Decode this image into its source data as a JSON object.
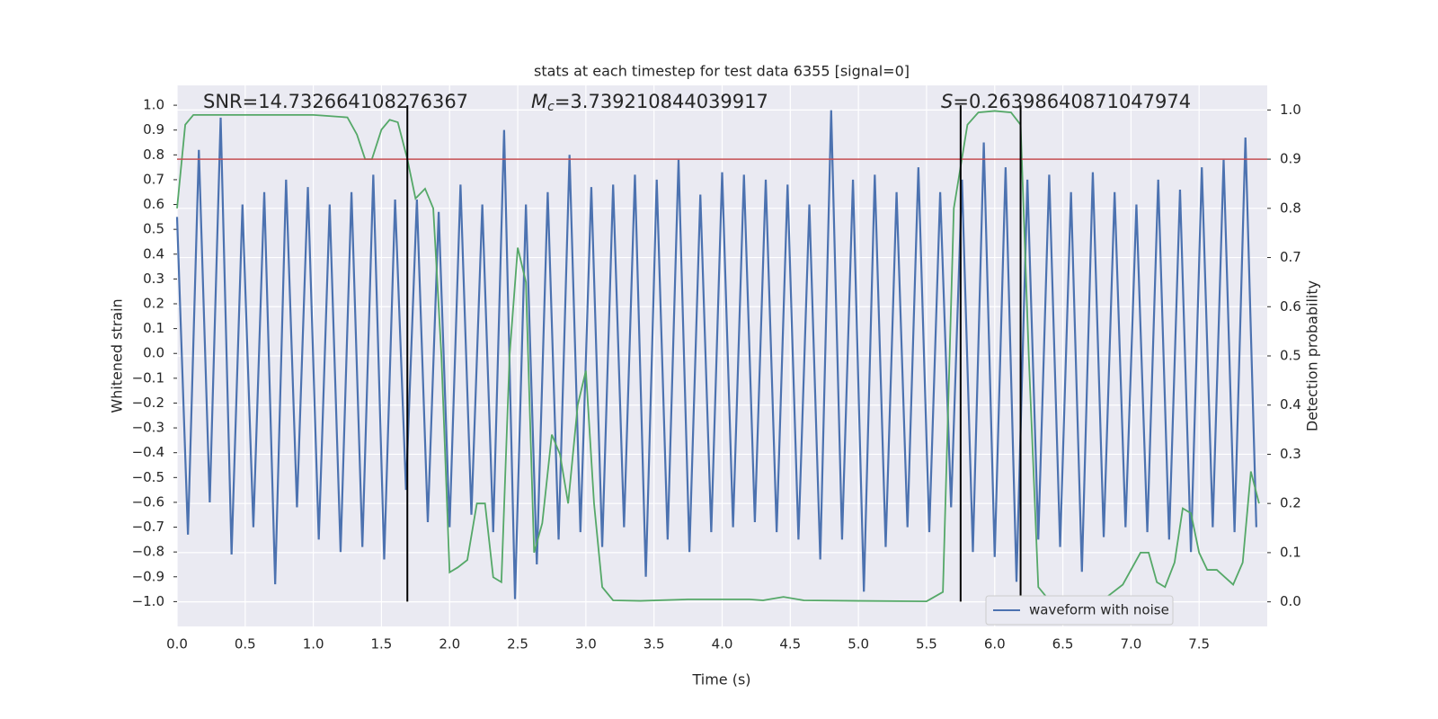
{
  "chart_data": {
    "type": "line",
    "title": "stats at each timestep for test data 6355 [signal=0]",
    "x_label": "Time (s)",
    "y_label": "Whitened strain",
    "y2_label": "Detection probability",
    "annotations": [
      {
        "text": "SNR=14.732664108276367"
      },
      {
        "symbol": "M",
        "subscript": "c",
        "text": "=3.739210844039917"
      },
      {
        "symbol": "S",
        "text": "=0.26398640871047974"
      }
    ],
    "xlim": [
      0,
      8
    ],
    "ylim": [
      -1.1,
      1.08
    ],
    "y2lim": [
      -0.05,
      1.05
    ],
    "xticks": [
      {
        "value": 0,
        "label": "0.0"
      },
      0.5,
      {
        "value": 1,
        "label": "1.0"
      },
      1.5,
      {
        "value": 2,
        "label": "2.0"
      },
      2.5,
      {
        "value": 3,
        "label": "3.0"
      },
      3.5,
      {
        "value": 4,
        "label": "4.0"
      },
      4.5,
      {
        "value": 5,
        "label": "5.0"
      },
      5.5,
      {
        "value": 6,
        "label": "6.0"
      },
      6.5,
      {
        "value": 7,
        "label": "7.0"
      },
      7.5
    ],
    "yticks": [
      {
        "value": -1,
        "label": "−1.0"
      },
      {
        "value": -0.9,
        "label": "−0.9"
      },
      {
        "value": -0.8,
        "label": "−0.8"
      },
      {
        "value": -0.7,
        "label": "−0.7"
      },
      {
        "value": -0.6,
        "label": "−0.6"
      },
      {
        "value": -0.5,
        "label": "−0.5"
      },
      {
        "value": -0.4,
        "label": "−0.4"
      },
      {
        "value": -0.3,
        "label": "−0.3"
      },
      {
        "value": -0.2,
        "label": "−0.2"
      },
      {
        "value": -0.1,
        "label": "−0.1"
      },
      {
        "value": 0,
        "label": "0.0"
      },
      0.1,
      0.2,
      0.3,
      0.4,
      0.5,
      0.6,
      0.7,
      0.8,
      0.9,
      {
        "value": 1,
        "label": "1.0"
      }
    ],
    "y2ticks": [
      {
        "value": 0,
        "label": "0.0"
      },
      0.1,
      0.2,
      0.3,
      0.4,
      0.5,
      0.6,
      0.7,
      0.8,
      0.9,
      {
        "value": 1,
        "label": "1.0"
      }
    ],
    "grid": true,
    "legend": "lower right",
    "series": [
      {
        "name": "waveform with noise",
        "color": "#4c72b0",
        "x": [
          0.0,
          0.08,
          0.16,
          0.24,
          0.32,
          0.4,
          0.48,
          0.56,
          0.64,
          0.72,
          0.8,
          0.88,
          0.96,
          1.04,
          1.12,
          1.2,
          1.28,
          1.36,
          1.44,
          1.52,
          1.6,
          1.68,
          1.76,
          1.84,
          1.92,
          2.0,
          2.08,
          2.16,
          2.24,
          2.32,
          2.4,
          2.48,
          2.56,
          2.64,
          2.72,
          2.8,
          2.88,
          2.96,
          3.04,
          3.12,
          3.2,
          3.28,
          3.36,
          3.44,
          3.52,
          3.6,
          3.68,
          3.76,
          3.84,
          3.92,
          4.0,
          4.08,
          4.16,
          4.24,
          4.32,
          4.4,
          4.48,
          4.56,
          4.64,
          4.72,
          4.8,
          4.88,
          4.96,
          5.04,
          5.12,
          5.2,
          5.28,
          5.36,
          5.44,
          5.52,
          5.6,
          5.68,
          5.76,
          5.84,
          5.92,
          6.0,
          6.08,
          6.16,
          6.24,
          6.32,
          6.4,
          6.48,
          6.56,
          6.64,
          6.72,
          6.8,
          6.88,
          6.96,
          7.04,
          7.12,
          7.2,
          7.28,
          7.36,
          7.44,
          7.52,
          7.6,
          7.68,
          7.76,
          7.84,
          7.92
        ],
        "values": [
          0.55,
          -0.73,
          0.82,
          -0.6,
          0.95,
          -0.81,
          0.6,
          -0.7,
          0.65,
          -0.93,
          0.7,
          -0.62,
          0.67,
          -0.75,
          0.6,
          -0.8,
          0.65,
          -0.78,
          0.72,
          -0.83,
          0.62,
          -0.55,
          0.62,
          -0.68,
          0.57,
          -0.7,
          0.68,
          -0.65,
          0.6,
          -0.72,
          0.9,
          -0.99,
          0.6,
          -0.85,
          0.65,
          -0.75,
          0.8,
          -0.72,
          0.67,
          -0.78,
          0.68,
          -0.7,
          0.72,
          -0.9,
          0.7,
          -0.75,
          0.78,
          -0.8,
          0.64,
          -0.72,
          0.73,
          -0.7,
          0.72,
          -0.68,
          0.7,
          -0.72,
          0.68,
          -0.75,
          0.6,
          -0.83,
          0.98,
          -0.75,
          0.7,
          -0.96,
          0.72,
          -0.78,
          0.65,
          -0.7,
          0.75,
          -0.72,
          0.65,
          -0.62,
          0.7,
          -0.8,
          0.85,
          -0.82,
          0.75,
          -0.92,
          0.7,
          -0.75,
          0.72,
          -0.78,
          0.65,
          -0.88,
          0.73,
          -0.74,
          0.65,
          -0.7,
          0.6,
          -0.72,
          0.7,
          -0.75,
          0.66,
          -0.8,
          0.75,
          -0.7,
          0.78,
          -0.72,
          0.87,
          -0.7
        ]
      },
      {
        "color": "#55a868",
        "axis": "y2",
        "x": [
          0.0,
          0.06,
          0.12,
          0.5,
          1.0,
          1.25,
          1.32,
          1.38,
          1.43,
          1.5,
          1.56,
          1.62,
          1.69,
          1.75,
          1.82,
          1.88,
          1.94,
          2.0,
          2.06,
          2.13,
          2.2,
          2.26,
          2.32,
          2.38,
          2.44,
          2.5,
          2.56,
          2.62,
          2.68,
          2.75,
          2.81,
          2.87,
          2.94,
          3.0,
          3.06,
          3.12,
          3.2,
          3.4,
          3.75,
          4.2,
          4.3,
          4.45,
          4.6,
          5.0,
          5.5,
          5.62,
          5.7,
          5.8,
          5.88,
          6.0,
          6.12,
          6.19,
          6.25,
          6.32,
          6.4,
          6.6,
          6.8,
          6.94,
          7.07,
          7.13,
          7.19,
          7.25,
          7.32,
          7.38,
          7.44,
          7.5,
          7.56,
          7.63,
          7.69,
          7.75,
          7.82,
          7.88,
          7.94
        ],
        "values": [
          0.8,
          0.97,
          0.99,
          0.99,
          0.99,
          0.985,
          0.95,
          0.9,
          0.9,
          0.96,
          0.98,
          0.975,
          0.9,
          0.82,
          0.84,
          0.8,
          0.5,
          0.06,
          0.07,
          0.085,
          0.2,
          0.2,
          0.05,
          0.04,
          0.5,
          0.72,
          0.65,
          0.1,
          0.16,
          0.34,
          0.3,
          0.2,
          0.4,
          0.47,
          0.2,
          0.03,
          0.003,
          0.002,
          0.005,
          0.005,
          0.003,
          0.01,
          0.003,
          0.002,
          0.001,
          0.02,
          0.8,
          0.97,
          0.995,
          0.998,
          0.995,
          0.97,
          0.5,
          0.03,
          0.003,
          0.002,
          0.005,
          0.035,
          0.1,
          0.1,
          0.04,
          0.03,
          0.08,
          0.19,
          0.18,
          0.1,
          0.065,
          0.065,
          0.05,
          0.035,
          0.08,
          0.265,
          0.2
        ]
      }
    ],
    "hlines": [
      {
        "value": 0.9,
        "axis": "y2",
        "color": "#c44e52"
      }
    ],
    "vlines": [
      1.69,
      5.75,
      6.19
    ],
    "vline_color": "#000000"
  }
}
